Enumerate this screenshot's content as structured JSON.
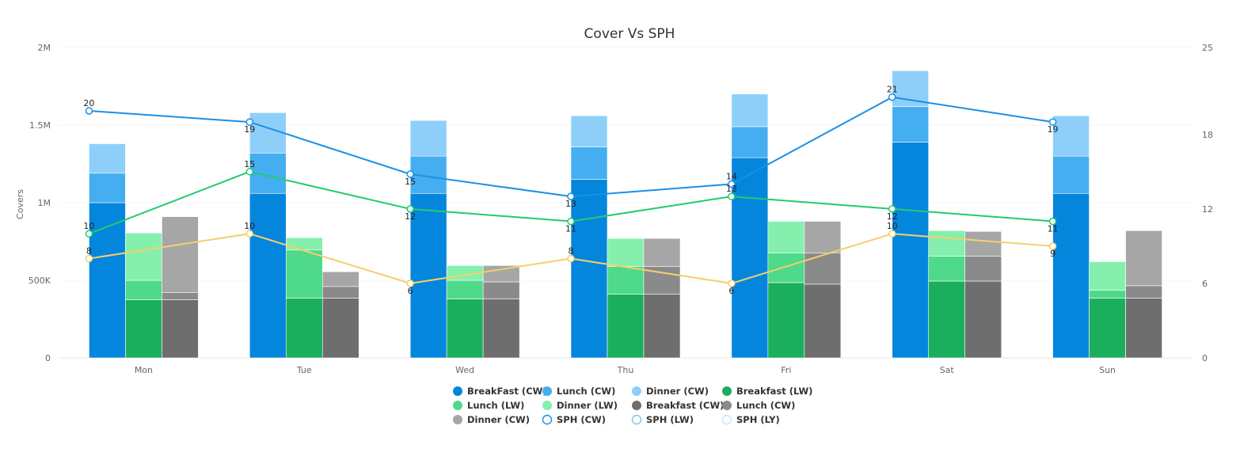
{
  "chart_data": {
    "type": "bar",
    "title": "Cover Vs SPH",
    "xlabel": "",
    "ylabel": "Covers",
    "y2label": "",
    "categories": [
      "Mon",
      "Tue",
      "Wed",
      "Thu",
      "Fri",
      "Sat",
      "Sun"
    ],
    "ylim": [
      0,
      2000000
    ],
    "yticks": [
      0,
      500000,
      1000000,
      1500000,
      2000000
    ],
    "ytick_labels": [
      "0",
      "500K",
      "1M",
      "1.5M",
      "2M"
    ],
    "y2lim": [
      0,
      25
    ],
    "y2ticks": [
      0,
      6,
      12,
      18,
      25
    ],
    "y2tick_labels": [
      "0",
      "6",
      "12",
      "18",
      "25"
    ],
    "grid": true,
    "legend_position": "bottom",
    "bar_series": [
      {
        "name": "BreakFast (CW)",
        "stack": "cw",
        "color": "#0586DD",
        "values": [
          1000000,
          1060000,
          1060000,
          1150000,
          1290000,
          1390000,
          1060000
        ]
      },
      {
        "name": "Lunch (CW)",
        "stack": "cw",
        "color": "#45AEF1",
        "values": [
          190000,
          260000,
          240000,
          210000,
          200000,
          230000,
          240000
        ]
      },
      {
        "name": "Dinner (CW)",
        "stack": "cw",
        "color": "#8ECFFA",
        "values": [
          190000,
          260000,
          230000,
          200000,
          210000,
          230000,
          260000
        ]
      },
      {
        "name": "Breakfast (LW)",
        "stack": "lw",
        "color": "#1BAF5D",
        "values": [
          375000,
          385000,
          380000,
          410000,
          485000,
          495000,
          385000
        ]
      },
      {
        "name": "Lunch (LW)",
        "stack": "lw",
        "color": "#4FD98A",
        "values": [
          125000,
          310000,
          120000,
          180000,
          190000,
          160000,
          50000
        ]
      },
      {
        "name": "Dinner (LW)",
        "stack": "lw",
        "color": "#85F0AE",
        "values": [
          305000,
          80000,
          95000,
          180000,
          205000,
          165000,
          185000
        ]
      },
      {
        "name": "Breakfast (CW)",
        "stack": "prev",
        "color": "#6E6E6E",
        "values": [
          375000,
          385000,
          380000,
          410000,
          475000,
          495000,
          385000
        ]
      },
      {
        "name": "Lunch (CW)",
        "stack": "prev",
        "color": "#8A8A8A",
        "values": [
          45000,
          75000,
          110000,
          180000,
          200000,
          160000,
          80000
        ]
      },
      {
        "name": "Dinner (CW)",
        "stack": "prev",
        "color": "#A6A6A6",
        "values": [
          490000,
          95000,
          105000,
          180000,
          205000,
          160000,
          355000
        ]
      }
    ],
    "line_series": [
      {
        "name": "SPH (CW)",
        "color": "#1A8FE6",
        "values": [
          19.9,
          19,
          14.8,
          13,
          14,
          21,
          19
        ],
        "labels": [
          "20",
          "19",
          "15",
          "13",
          "14",
          "21",
          "19"
        ],
        "label_pos": [
          "above",
          "below",
          "below",
          "below",
          "above",
          "above",
          "below"
        ]
      },
      {
        "name": "SPH (LW)",
        "color": "#20CC6E",
        "values": [
          10,
          15,
          12,
          11,
          13,
          12,
          11
        ],
        "labels": [
          "10",
          "15",
          "12",
          "11",
          "13",
          "12",
          "11"
        ],
        "label_pos": [
          "above",
          "above",
          "below",
          "below",
          "above",
          "below",
          "below"
        ]
      },
      {
        "name": "SPH (LY)",
        "color": "#F6CF6B",
        "values": [
          8,
          10,
          6,
          8,
          6,
          10,
          9
        ],
        "labels": [
          "8",
          "10",
          "6",
          "8",
          "6",
          "10",
          "9"
        ],
        "label_pos": [
          "above",
          "above",
          "below",
          "above",
          "below",
          "above",
          "below"
        ]
      }
    ],
    "legend": [
      {
        "label": "BreakFast (CW)",
        "color": "#0586DD",
        "marker": "filled"
      },
      {
        "label": "Lunch (CW)",
        "color": "#45AEF1",
        "marker": "filled"
      },
      {
        "label": "Dinner (CW)",
        "color": "#8ECFFA",
        "marker": "filled"
      },
      {
        "label": "Breakfast (LW)",
        "color": "#1BAF5D",
        "marker": "filled"
      },
      {
        "label": "Lunch (LW)",
        "color": "#4FD98A",
        "marker": "filled"
      },
      {
        "label": "Dinner (LW)",
        "color": "#85F0AE",
        "marker": "filled"
      },
      {
        "label": "Breakfast (CW)",
        "color": "#6E6E6E",
        "marker": "filled"
      },
      {
        "label": "Lunch (CW)",
        "color": "#8A8A8A",
        "marker": "filled"
      },
      {
        "label": "Dinner (CW)",
        "color": "#A6A6A6",
        "marker": "filled"
      },
      {
        "label": "SPH (CW)",
        "color": "#1A8FE6",
        "marker": "hollow"
      },
      {
        "label": "SPH (LW)",
        "color": "#7FC4F3",
        "marker": "hollow"
      },
      {
        "label": "SPH (LY)",
        "color": "#C8E6FA",
        "marker": "hollow"
      }
    ]
  }
}
